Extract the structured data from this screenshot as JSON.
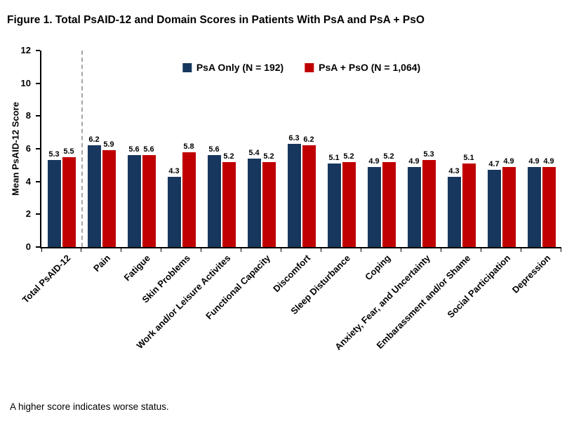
{
  "title": "Figure 1. Total PsAID-12 and Domain Scores in Patients With PsA and PsA + PsO",
  "footnote": "A higher score indicates worse status.",
  "chart_data": {
    "type": "bar",
    "title": "Figure 1. Total PsAID-12 and Domain Scores in Patients With PsA and PsA + PsO",
    "ylabel": "Mean PsAID-12 Score",
    "xlabel": "",
    "ylim": [
      0,
      12
    ],
    "yticks": [
      0,
      2,
      4,
      6,
      8,
      10,
      12
    ],
    "grid": false,
    "legend_position": "top-center",
    "separator_after_index": 0,
    "separator_color": "#a6a6a6",
    "categories": [
      "Total PsAID-12",
      "Pain",
      "Fatigue",
      "Skin Problems",
      "Work and/or Leisure Activites",
      "Functional Capacity",
      "Discomfort",
      "Sleep Disturbance",
      "Coping",
      "Anxiety, Fear, and Uncertainty",
      "Embarassment and/or Shame",
      "Social Participation",
      "Depression"
    ],
    "series": [
      {
        "name": "PsA Only (N = 192)",
        "key": "psa-only",
        "color": "#17375E",
        "values": [
          5.3,
          6.2,
          5.6,
          4.3,
          5.6,
          5.4,
          6.3,
          5.1,
          4.9,
          4.9,
          4.3,
          4.7,
          4.9
        ]
      },
      {
        "name": "PsA + PsO (N = 1,064)",
        "key": "psa-pso",
        "color": "#C00000",
        "values": [
          5.5,
          5.9,
          5.6,
          5.8,
          5.2,
          5.2,
          6.2,
          5.2,
          5.2,
          5.3,
          5.1,
          4.9,
          4.9
        ]
      }
    ]
  }
}
